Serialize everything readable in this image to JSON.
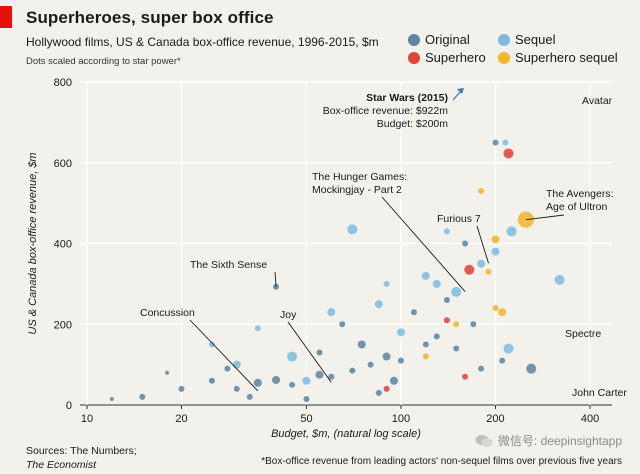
{
  "header": {
    "title": "Superheroes, super box office",
    "subtitle": "Hollywood films, US & Canada box-office revenue, 1996-2015, $m",
    "note": "Dots scaled according to star power*"
  },
  "legend": [
    {
      "label": "Original",
      "color": "#5e86a0"
    },
    {
      "label": "Sequel",
      "color": "#7fbde0"
    },
    {
      "label": "Superhero",
      "color": "#e2433b"
    },
    {
      "label": "Superhero sequel",
      "color": "#f3b62b"
    }
  ],
  "footer": {
    "sources_line1": "Sources: The Numbers;",
    "sources_line2": "The Economist",
    "footnote": "*Box-office revenue from leading actors' non-sequel films over previous five years",
    "watermark": "微信号: deepinsightapp"
  },
  "chart_data": {
    "type": "scatter",
    "xscale": "log",
    "xlabel": "Budget, $m, (natural log scale)",
    "ylabel": "US & Canada box-office revenue, $m",
    "xlim": [
      9.5,
      470
    ],
    "ylim": [
      0,
      800
    ],
    "xticks": [
      10,
      20,
      50,
      100,
      200,
      400
    ],
    "yticks": [
      0,
      200,
      400,
      600,
      800
    ],
    "grid": true,
    "legend_position": "top-right",
    "series": [
      {
        "name": "Original",
        "color": "#5e86a0",
        "points": [
          {
            "x": 30,
            "y": 40,
            "size": 3
          },
          {
            "x": 35,
            "y": 55,
            "size": 4
          },
          {
            "x": 40,
            "y": 62,
            "size": 4
          },
          {
            "x": 45,
            "y": 50,
            "size": 3
          },
          {
            "x": 55,
            "y": 75,
            "size": 4
          },
          {
            "x": 60,
            "y": 70,
            "size": 3
          },
          {
            "x": 70,
            "y": 85,
            "size": 3
          },
          {
            "x": 80,
            "y": 100,
            "size": 3
          },
          {
            "x": 90,
            "y": 120,
            "size": 4
          },
          {
            "x": 100,
            "y": 110,
            "size": 3
          },
          {
            "x": 120,
            "y": 150,
            "size": 3
          },
          {
            "x": 130,
            "y": 170,
            "size": 3
          },
          {
            "x": 150,
            "y": 140,
            "size": 3
          },
          {
            "x": 75,
            "y": 150,
            "size": 4
          },
          {
            "x": 40,
            "y": 293,
            "size": 3
          },
          {
            "x": 55,
            "y": 130,
            "size": 3
          },
          {
            "x": 25,
            "y": 60,
            "size": 3
          },
          {
            "x": 20,
            "y": 40,
            "size": 3
          },
          {
            "x": 15,
            "y": 20,
            "size": 3
          },
          {
            "x": 12,
            "y": 15,
            "size": 2
          },
          {
            "x": 65,
            "y": 200,
            "size": 3
          },
          {
            "x": 110,
            "y": 230,
            "size": 3
          },
          {
            "x": 140,
            "y": 260,
            "size": 3
          },
          {
            "x": 170,
            "y": 200,
            "size": 3
          },
          {
            "x": 180,
            "y": 90,
            "size": 3
          },
          {
            "x": 210,
            "y": 110,
            "size": 3
          },
          {
            "x": 260,
            "y": 90,
            "size": 5
          },
          {
            "x": 200,
            "y": 650,
            "size": 3
          },
          {
            "x": 160,
            "y": 400,
            "size": 3
          },
          {
            "x": 50,
            "y": 15,
            "size": 3
          },
          {
            "x": 85,
            "y": 30,
            "size": 3
          },
          {
            "x": 95,
            "y": 60,
            "size": 4
          },
          {
            "x": 33,
            "y": 20,
            "size": 3
          },
          {
            "x": 28,
            "y": 90,
            "size": 3
          },
          {
            "x": 18,
            "y": 80,
            "size": 2
          }
        ]
      },
      {
        "name": "Sequel",
        "color": "#7fbde0",
        "points": [
          {
            "x": 70,
            "y": 435,
            "size": 5
          },
          {
            "x": 45,
            "y": 120,
            "size": 5
          },
          {
            "x": 30,
            "y": 100,
            "size": 4
          },
          {
            "x": 60,
            "y": 230,
            "size": 4
          },
          {
            "x": 85,
            "y": 250,
            "size": 4
          },
          {
            "x": 100,
            "y": 180,
            "size": 4
          },
          {
            "x": 130,
            "y": 300,
            "size": 4
          },
          {
            "x": 150,
            "y": 280,
            "size": 5
          },
          {
            "x": 180,
            "y": 350,
            "size": 4
          },
          {
            "x": 200,
            "y": 380,
            "size": 4
          },
          {
            "x": 215,
            "y": 650,
            "size": 3
          },
          {
            "x": 225,
            "y": 430,
            "size": 5
          },
          {
            "x": 320,
            "y": 310,
            "size": 5
          },
          {
            "x": 140,
            "y": 430,
            "size": 3
          },
          {
            "x": 120,
            "y": 320,
            "size": 4
          },
          {
            "x": 90,
            "y": 300,
            "size": 3
          },
          {
            "x": 220,
            "y": 140,
            "size": 5
          },
          {
            "x": 35,
            "y": 190,
            "size": 3
          },
          {
            "x": 25,
            "y": 150,
            "size": 3
          },
          {
            "x": 50,
            "y": 60,
            "size": 4
          }
        ]
      },
      {
        "name": "Superhero",
        "color": "#e2433b",
        "points": [
          {
            "x": 220,
            "y": 623,
            "size": 5
          },
          {
            "x": 165,
            "y": 335,
            "size": 5
          },
          {
            "x": 140,
            "y": 210,
            "size": 3
          },
          {
            "x": 160,
            "y": 70,
            "size": 3
          },
          {
            "x": 90,
            "y": 40,
            "size": 3
          }
        ]
      },
      {
        "name": "Superhero sequel",
        "color": "#f3b62b",
        "points": [
          {
            "x": 250,
            "y": 459,
            "size": 8
          },
          {
            "x": 200,
            "y": 410,
            "size": 4
          },
          {
            "x": 180,
            "y": 530,
            "size": 3
          },
          {
            "x": 190,
            "y": 330,
            "size": 3
          },
          {
            "x": 200,
            "y": 240,
            "size": 3
          },
          {
            "x": 210,
            "y": 230,
            "size": 4
          },
          {
            "x": 150,
            "y": 200,
            "size": 3
          },
          {
            "x": 120,
            "y": 120,
            "size": 3
          }
        ]
      }
    ],
    "annotations": [
      {
        "label": "Avatar",
        "x": 237,
        "y": 760
      },
      {
        "label": "The Avengers: Age of Ultron",
        "x": 250,
        "y": 459
      },
      {
        "label": "Furious 7",
        "x": 190,
        "y": 351
      },
      {
        "label": "The Hunger Games: Mockingjay - Part 2",
        "x": 160,
        "y": 281
      },
      {
        "label": "The Sixth Sense",
        "x": 40,
        "y": 293
      },
      {
        "label": "Concussion",
        "x": 35,
        "y": 35
      },
      {
        "label": "Joy",
        "x": 60,
        "y": 56
      },
      {
        "label": "Spectre",
        "x": 245,
        "y": 200
      },
      {
        "label": "John Carter",
        "x": 263,
        "y": 73
      }
    ],
    "callout": {
      "title": "Star Wars (2015)",
      "revenue_line": "Box-office revenue: $922m",
      "budget_line": "Budget: $200m"
    }
  }
}
